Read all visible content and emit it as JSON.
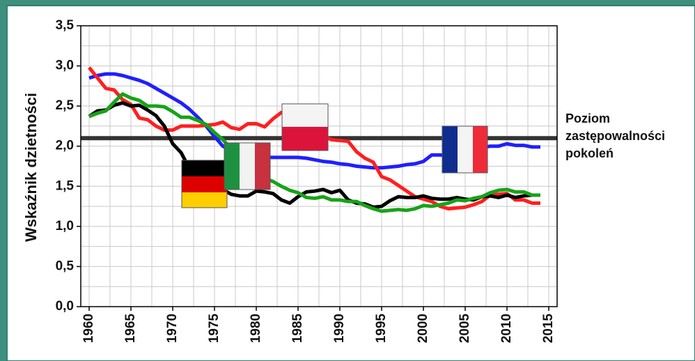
{
  "chart_data": {
    "type": "line",
    "ylabel": "Wskaźnik dzietności",
    "x": [
      1960,
      1961,
      1962,
      1963,
      1964,
      1965,
      1966,
      1967,
      1968,
      1969,
      1970,
      1971,
      1972,
      1973,
      1974,
      1975,
      1976,
      1977,
      1978,
      1979,
      1980,
      1981,
      1982,
      1983,
      1984,
      1985,
      1986,
      1987,
      1988,
      1989,
      1990,
      1991,
      1992,
      1993,
      1994,
      1995,
      1996,
      1997,
      1998,
      1999,
      2000,
      2001,
      2002,
      2003,
      2004,
      2005,
      2006,
      2007,
      2008,
      2009,
      2010,
      2011,
      2012,
      2013,
      2014
    ],
    "series": [
      {
        "color": "#1f1fff",
        "values": [
          2.85,
          2.88,
          2.9,
          2.9,
          2.88,
          2.85,
          2.82,
          2.78,
          2.72,
          2.66,
          2.6,
          2.54,
          2.46,
          2.36,
          2.25,
          2.12,
          2.0,
          1.95,
          1.9,
          1.88,
          1.86,
          1.86,
          1.86,
          1.86,
          1.86,
          1.86,
          1.85,
          1.83,
          1.81,
          1.8,
          1.78,
          1.77,
          1.75,
          1.74,
          1.73,
          1.73,
          1.74,
          1.75,
          1.77,
          1.78,
          1.81,
          1.89,
          1.89,
          1.88,
          1.92,
          1.94,
          1.98,
          1.98,
          2.0,
          2.0,
          2.03,
          2.01,
          2.01,
          1.99,
          1.99
        ]
      },
      {
        "color": "#ff1f1f",
        "values": [
          2.98,
          2.85,
          2.72,
          2.7,
          2.58,
          2.52,
          2.35,
          2.33,
          2.25,
          2.2,
          2.2,
          2.25,
          2.25,
          2.25,
          2.26,
          2.27,
          2.3,
          2.23,
          2.21,
          2.28,
          2.28,
          2.24,
          2.34,
          2.42,
          2.37,
          2.33,
          2.22,
          2.15,
          2.13,
          2.08,
          2.07,
          2.06,
          1.93,
          1.85,
          1.8,
          1.62,
          1.58,
          1.51,
          1.44,
          1.37,
          1.34,
          1.31,
          1.25,
          1.22,
          1.23,
          1.24,
          1.27,
          1.31,
          1.39,
          1.4,
          1.41,
          1.33,
          1.33,
          1.29,
          1.29
        ]
      },
      {
        "color": "#000000",
        "values": [
          2.37,
          2.44,
          2.45,
          2.51,
          2.54,
          2.5,
          2.51,
          2.45,
          2.38,
          2.25,
          2.03,
          1.92,
          1.72,
          1.54,
          1.51,
          1.45,
          1.46,
          1.4,
          1.38,
          1.38,
          1.44,
          1.43,
          1.41,
          1.33,
          1.29,
          1.37,
          1.43,
          1.44,
          1.46,
          1.42,
          1.45,
          1.33,
          1.29,
          1.28,
          1.24,
          1.25,
          1.32,
          1.37,
          1.36,
          1.36,
          1.38,
          1.35,
          1.34,
          1.34,
          1.36,
          1.34,
          1.33,
          1.37,
          1.38,
          1.36,
          1.39,
          1.36,
          1.38,
          1.39,
          1.39
        ]
      },
      {
        "color": "#17a317",
        "values": [
          2.37,
          2.41,
          2.44,
          2.55,
          2.65,
          2.6,
          2.57,
          2.5,
          2.5,
          2.49,
          2.43,
          2.36,
          2.36,
          2.32,
          2.27,
          2.17,
          2.08,
          1.97,
          1.85,
          1.76,
          1.64,
          1.6,
          1.56,
          1.5,
          1.45,
          1.42,
          1.36,
          1.35,
          1.37,
          1.33,
          1.33,
          1.31,
          1.31,
          1.26,
          1.22,
          1.19,
          1.2,
          1.21,
          1.2,
          1.22,
          1.26,
          1.25,
          1.27,
          1.29,
          1.33,
          1.32,
          1.35,
          1.37,
          1.42,
          1.45,
          1.46,
          1.43,
          1.43,
          1.39,
          1.39
        ]
      }
    ],
    "xlim": [
      1959,
      2016
    ],
    "xticks": [
      1960,
      1965,
      1970,
      1975,
      1980,
      1985,
      1990,
      1995,
      2000,
      2005,
      2010,
      2015
    ],
    "xgrid": [
      1960,
      1962.5,
      1965,
      1967.5,
      1970,
      1972.5,
      1975,
      1977.5,
      1980,
      1982.5,
      1985,
      1987.5,
      1990,
      1992.5,
      1995,
      1997.5,
      2000,
      2002.5,
      2005,
      2007.5,
      2010,
      2012.5,
      2015
    ],
    "ylim": [
      0,
      3.5
    ],
    "yticks": [
      {
        "value": 0,
        "label": "0,0"
      },
      {
        "value": 0.5,
        "label": "0,5"
      },
      {
        "value": 1,
        "label": "1,0"
      },
      {
        "value": 1.5,
        "label": "1,5"
      },
      {
        "value": 2,
        "label": "2,0"
      },
      {
        "value": 2.5,
        "label": "2,5"
      },
      {
        "value": 3,
        "label": "3,0"
      },
      {
        "value": 3.5,
        "label": "3,5"
      }
    ],
    "ygrid": [
      0,
      0.25,
      0.5,
      0.75,
      1,
      1.25,
      1.5,
      1.75,
      2,
      2.25,
      2.5,
      2.75,
      3,
      3.25,
      3.5
    ],
    "grid": true,
    "reference_line": {
      "value": 2.1,
      "color": "#333333",
      "label_lines": [
        "Poziom",
        "zastępowalności",
        "pokoleń"
      ]
    }
  }
}
